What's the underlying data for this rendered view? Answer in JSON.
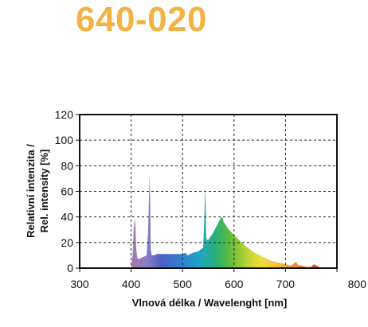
{
  "page": {
    "product_code": "640-020",
    "accent_color": "#f5b244"
  },
  "chart_data": {
    "type": "area",
    "title": "640-020",
    "xlabel": "Vlnová délka / Wavelenght [nm]",
    "ylabel_lines": [
      "Relativní intenzita /",
      "Rel. intensity [%]"
    ],
    "xlim": [
      300,
      800
    ],
    "ylim": [
      0,
      120
    ],
    "x_ticks": [
      300,
      400,
      500,
      600,
      700,
      800
    ],
    "y_ticks": [
      0,
      20,
      40,
      60,
      80,
      100,
      120
    ],
    "x_tick_labels": [
      "300",
      "400",
      "500",
      "600",
      "700",
      "800"
    ],
    "y_tick_labels": [
      "0",
      "20",
      "40",
      "60",
      "80",
      "100",
      "120"
    ],
    "grid": true,
    "grid_style": "dashed",
    "fill": "visible-spectrum-gradient",
    "series": [
      {
        "x": [
          400,
          403,
          405,
          407,
          408,
          410,
          412,
          415,
          420,
          425,
          430,
          433,
          435,
          436,
          437,
          438,
          440,
          445,
          450,
          460,
          470,
          480,
          490,
          500,
          505,
          510,
          520,
          530,
          540,
          542,
          544,
          545,
          546,
          547,
          548,
          550,
          555,
          560,
          565,
          570,
          575,
          578,
          580,
          585,
          590,
          600,
          610,
          620,
          630,
          640,
          650,
          660,
          670,
          680,
          690,
          700,
          710,
          715,
          720,
          725,
          730,
          740,
          750,
          755,
          760,
          765,
          770
        ],
        "y": [
          0,
          10,
          30,
          39,
          36,
          15,
          8,
          7,
          8,
          9,
          10,
          28,
          58,
          73,
          55,
          15,
          10,
          10,
          11,
          11,
          11,
          11,
          11,
          11,
          12,
          10,
          12,
          13,
          16,
          35,
          63,
          50,
          20,
          24,
          22,
          22,
          25,
          28,
          32,
          36,
          40,
          39,
          36,
          33,
          30,
          26,
          22,
          18,
          15,
          12,
          10,
          8,
          6,
          5,
          4,
          3,
          2,
          3,
          5,
          2,
          2,
          1,
          1,
          3,
          2,
          1,
          0
        ]
      }
    ]
  }
}
